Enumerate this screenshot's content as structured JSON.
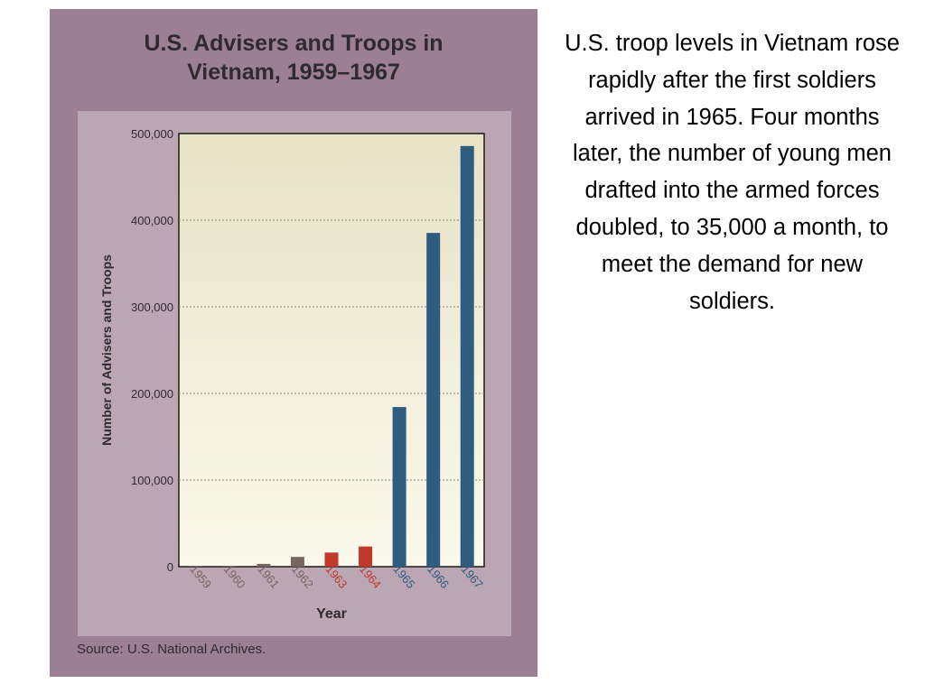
{
  "caption": "U.S. troop levels in Vietnam rose rapidly after the first soldiers arrived in 1965. Four months later, the number of young men drafted into the armed forces doubled, to 35,000 a month, to meet the demand for new soldiers.",
  "source_note": "Source: U.S. National Archives.",
  "colors": {
    "card_background": "#9c7f93",
    "panel_background": "#bba6b4",
    "plot_gradient_top": "#e8e3c6",
    "plot_gradient_bottom": "#fbf9ec",
    "early_years": "#7a6660",
    "escalation_years": "#c0392b",
    "combat_years": "#2f5d80"
  },
  "chart_data": {
    "type": "bar",
    "title_lines": [
      "U.S. Advisers and Troops in",
      "Vietnam, 1959–1967"
    ],
    "xlabel": "Year",
    "ylabel": "Number of Advisers and Troops",
    "ylim": [
      0,
      500000
    ],
    "y_ticks": [
      {
        "value": 0,
        "label": "0"
      },
      {
        "value": 100000,
        "label": "100,000"
      },
      {
        "value": 200000,
        "label": "200,000"
      },
      {
        "value": 300000,
        "label": "300,000"
      },
      {
        "value": 400000,
        "label": "400,000"
      },
      {
        "value": 500000,
        "label": "500,000"
      }
    ],
    "grid": true,
    "categories": [
      "1959",
      "1960",
      "1961",
      "1962",
      "1963",
      "1964",
      "1965",
      "1966",
      "1967"
    ],
    "values": [
      760,
      900,
      3205,
      11300,
      16300,
      23300,
      184300,
      385300,
      485600
    ],
    "bar_colors": [
      "#7a6660",
      "#7a6660",
      "#7a6660",
      "#7a6660",
      "#c0392b",
      "#c0392b",
      "#2f5d80",
      "#2f5d80",
      "#2f5d80"
    ]
  }
}
